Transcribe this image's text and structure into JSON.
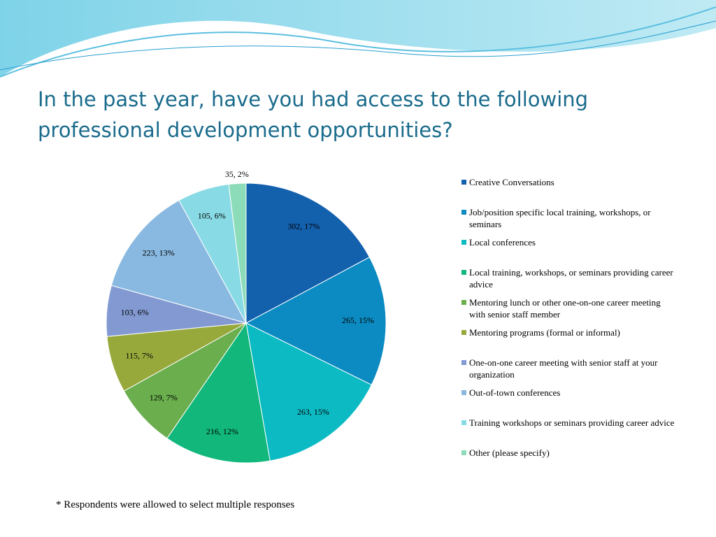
{
  "chart_data": {
    "type": "pie",
    "title": "In the past year, have you had access to the following professional development opportunities?",
    "categories": [
      "Creative Conversations",
      "Job/position specific local training, workshops, or seminars",
      "Local conferences",
      "Local training, workshops, or seminars providing career advice",
      "Mentoring lunch or other one-on-one career meeting with senior staff member",
      "Mentoring programs (formal or informal)",
      "One-on-one career meeting with senior staff at your organization",
      "Out-of-town conferences",
      "Training workshops or seminars providing career advice",
      "Other (please specify)"
    ],
    "values": [
      302,
      265,
      263,
      216,
      129,
      115,
      103,
      223,
      105,
      35
    ],
    "value_labels": [
      "302, 17%",
      "265, 15%",
      "263, 15%",
      "216, 12%",
      "129, 7%",
      "115, 7%",
      "103, 6%",
      "223, 13%",
      "105, 6%",
      "35, 2%"
    ],
    "colors": [
      "#1360ad",
      "#0b8bc2",
      "#0bbac3",
      "#12b77b",
      "#6aae4e",
      "#98a93c",
      "#8299d1",
      "#89b9e1",
      "#88dbe5",
      "#8ddcb9"
    ],
    "legend": "right",
    "annotations": [
      "* Respondents were allowed to select multiple responses"
    ]
  }
}
